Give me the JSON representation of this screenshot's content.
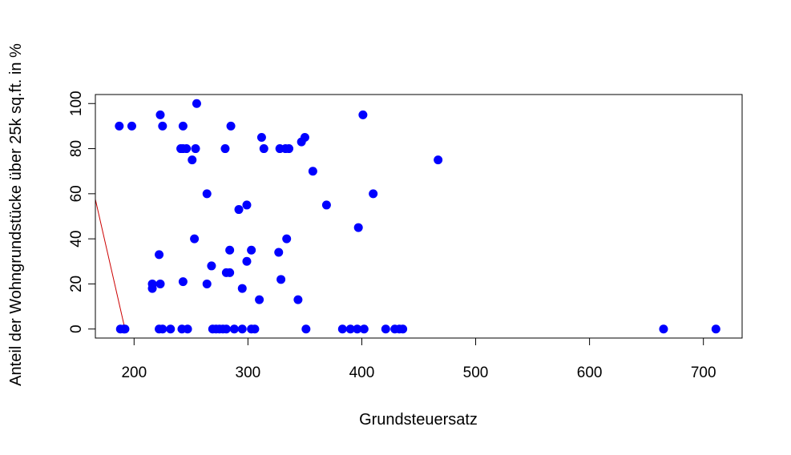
{
  "chart_data": {
    "type": "scatter",
    "title": "",
    "xlabel": "Grundsteuersatz",
    "ylabel": "Anteil der Wohngrundstücke über 25k sq.ft. in %",
    "xlim": [
      166,
      734
    ],
    "ylim": [
      -4,
      104
    ],
    "x_ticks": [
      200,
      300,
      400,
      500,
      600,
      700
    ],
    "y_ticks": [
      0,
      20,
      40,
      60,
      80,
      100
    ],
    "grid": false,
    "legend": "none",
    "point_color": "#0000ff",
    "line_color": "#cc0000",
    "points": [
      {
        "x": 187,
        "y": 90
      },
      {
        "x": 198,
        "y": 90
      },
      {
        "x": 188,
        "y": 0
      },
      {
        "x": 191,
        "y": 0
      },
      {
        "x": 192,
        "y": 0
      },
      {
        "x": 216,
        "y": 20
      },
      {
        "x": 216,
        "y": 18
      },
      {
        "x": 222,
        "y": 33
      },
      {
        "x": 223,
        "y": 20
      },
      {
        "x": 223,
        "y": 95
      },
      {
        "x": 225,
        "y": 90
      },
      {
        "x": 222,
        "y": 0
      },
      {
        "x": 225,
        "y": 0
      },
      {
        "x": 232,
        "y": 0
      },
      {
        "x": 241,
        "y": 80
      },
      {
        "x": 243,
        "y": 90
      },
      {
        "x": 243,
        "y": 80
      },
      {
        "x": 246,
        "y": 80
      },
      {
        "x": 243,
        "y": 21
      },
      {
        "x": 242,
        "y": 0
      },
      {
        "x": 247,
        "y": 0
      },
      {
        "x": 251,
        "y": 75
      },
      {
        "x": 254,
        "y": 80
      },
      {
        "x": 255,
        "y": 100
      },
      {
        "x": 253,
        "y": 40
      },
      {
        "x": 264,
        "y": 60
      },
      {
        "x": 264,
        "y": 20
      },
      {
        "x": 268,
        "y": 28
      },
      {
        "x": 269,
        "y": 0
      },
      {
        "x": 272,
        "y": 0
      },
      {
        "x": 275,
        "y": 0
      },
      {
        "x": 278,
        "y": 0
      },
      {
        "x": 281,
        "y": 0
      },
      {
        "x": 280,
        "y": 80
      },
      {
        "x": 281,
        "y": 25
      },
      {
        "x": 284,
        "y": 25
      },
      {
        "x": 284,
        "y": 35
      },
      {
        "x": 285,
        "y": 90
      },
      {
        "x": 288,
        "y": 0
      },
      {
        "x": 292,
        "y": 53
      },
      {
        "x": 295,
        "y": 18
      },
      {
        "x": 295,
        "y": 0
      },
      {
        "x": 299,
        "y": 55
      },
      {
        "x": 299,
        "y": 30
      },
      {
        "x": 303,
        "y": 35
      },
      {
        "x": 303,
        "y": 0
      },
      {
        "x": 306,
        "y": 0
      },
      {
        "x": 310,
        "y": 13
      },
      {
        "x": 312,
        "y": 85
      },
      {
        "x": 314,
        "y": 80
      },
      {
        "x": 327,
        "y": 34
      },
      {
        "x": 328,
        "y": 80
      },
      {
        "x": 329,
        "y": 22
      },
      {
        "x": 333,
        "y": 80
      },
      {
        "x": 334,
        "y": 40
      },
      {
        "x": 336,
        "y": 80
      },
      {
        "x": 344,
        "y": 13
      },
      {
        "x": 347,
        "y": 83
      },
      {
        "x": 350,
        "y": 85
      },
      {
        "x": 351,
        "y": 0
      },
      {
        "x": 357,
        "y": 70
      },
      {
        "x": 369,
        "y": 55
      },
      {
        "x": 383,
        "y": 0
      },
      {
        "x": 390,
        "y": 0
      },
      {
        "x": 396,
        "y": 0
      },
      {
        "x": 397,
        "y": 45
      },
      {
        "x": 401,
        "y": 95
      },
      {
        "x": 402,
        "y": 0
      },
      {
        "x": 410,
        "y": 60
      },
      {
        "x": 421,
        "y": 0
      },
      {
        "x": 429,
        "y": 0
      },
      {
        "x": 433,
        "y": 0
      },
      {
        "x": 436,
        "y": 0
      },
      {
        "x": 467,
        "y": 75
      },
      {
        "x": 665,
        "y": 0
      },
      {
        "x": 711,
        "y": 0
      }
    ],
    "line": [
      {
        "x": 166,
        "y": 57.5
      },
      {
        "x": 192,
        "y": 0
      }
    ]
  }
}
